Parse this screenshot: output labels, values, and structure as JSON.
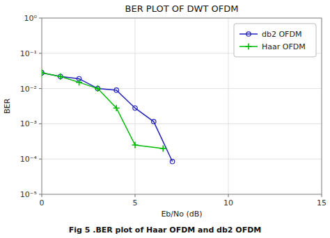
{
  "chart_data": {
    "type": "line",
    "title": "BER PLOT OF DWT OFDM",
    "xlabel": "Eb/No (dB)",
    "ylabel": "BER",
    "caption": "Fig 5 .BER plot of Haar OFDM and db2 OFDM",
    "log": "y",
    "grid": true,
    "legend": "upper right",
    "xlim": [
      0,
      15
    ],
    "xticks": [
      0,
      5,
      10,
      15
    ],
    "ylim": [
      1e-05,
      1
    ],
    "yticks": [
      {
        "value": 1e-05,
        "label": "10⁻⁵"
      },
      {
        "value": 0.0001,
        "label": "10⁻⁴"
      },
      {
        "value": 0.001,
        "label": "10⁻³"
      },
      {
        "value": 0.01,
        "label": "10⁻²"
      },
      {
        "value": 0.1,
        "label": "10⁻¹"
      },
      {
        "value": 1,
        "label": "10⁰"
      }
    ],
    "series": [
      {
        "name": "db2 OFDM",
        "color": "#2020bb",
        "marker": "circle",
        "line_style": "solid",
        "x": [
          0,
          1,
          2,
          3,
          4,
          5,
          6,
          7
        ],
        "values": [
          0.028,
          0.022,
          0.019,
          0.01,
          0.009,
          0.0028,
          0.00115,
          8.5e-05
        ]
      },
      {
        "name": "Haar OFDM",
        "color": "#00bb00",
        "marker": "plus",
        "line_style": "solid",
        "x": [
          0,
          1,
          2,
          3,
          4,
          5,
          6.5
        ],
        "values": [
          0.028,
          0.022,
          0.015,
          0.01,
          0.0028,
          0.00025,
          0.0002
        ]
      }
    ]
  }
}
